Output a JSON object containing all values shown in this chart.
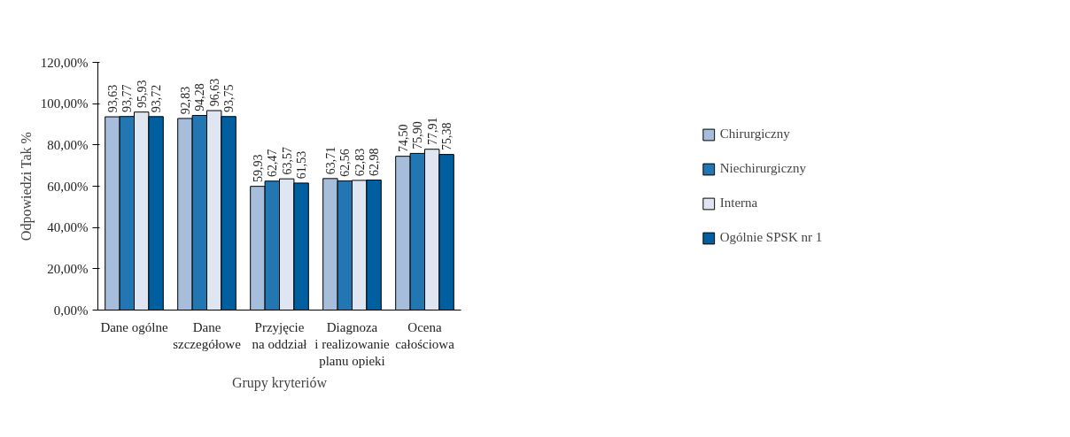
{
  "chart_data": {
    "type": "bar",
    "xlabel": "Grupy kryteriów",
    "ylabel": "Odpowiedzi Tak %",
    "categories": [
      "Dane ogólne",
      "Dane\nszczegółowe",
      "Przyjęcie\nna oddział",
      "Diagnoza\ni realizowanie\nplanu opieki",
      "Ocena\ncałościowa"
    ],
    "series": [
      {
        "name": "Chirurgiczny",
        "color": "#a6bedc",
        "values": [
          93.63,
          92.83,
          59.93,
          63.71,
          74.5
        ],
        "value_labels": [
          "93,63",
          "92,83",
          "59,93",
          "63,71",
          "74,50"
        ]
      },
      {
        "name": "Niechirurgiczny",
        "color": "#2277b3",
        "values": [
          93.77,
          94.28,
          62.47,
          62.56,
          75.9
        ],
        "value_labels": [
          "93,77",
          "94,28",
          "62,47",
          "62,56",
          "75,90"
        ]
      },
      {
        "name": "Interna",
        "color": "#dfe6f2",
        "values": [
          95.93,
          96.63,
          63.57,
          62.83,
          77.91
        ],
        "value_labels": [
          "95,93",
          "96,63",
          "63,57",
          "62,83",
          "77,91"
        ]
      },
      {
        "name": "Ogólnie SPSK nr 1",
        "color": "#005f9e",
        "values": [
          93.72,
          93.75,
          61.53,
          62.98,
          75.38
        ],
        "value_labels": [
          "93,72",
          "93,75",
          "61,53",
          "62,98",
          "75,38"
        ]
      }
    ],
    "ylim": [
      0,
      120
    ],
    "yticks": [
      {
        "value": 0,
        "label": "0,00%"
      },
      {
        "value": 20,
        "label": "20,00%"
      },
      {
        "value": 40,
        "label": "40,00%"
      },
      {
        "value": 60,
        "label": "60,00%"
      },
      {
        "value": 80,
        "label": "80,00%"
      },
      {
        "value": 100,
        "label": "100,00%"
      },
      {
        "value": 120,
        "label": "120,00%"
      }
    ],
    "grid": false,
    "legend": "right"
  }
}
